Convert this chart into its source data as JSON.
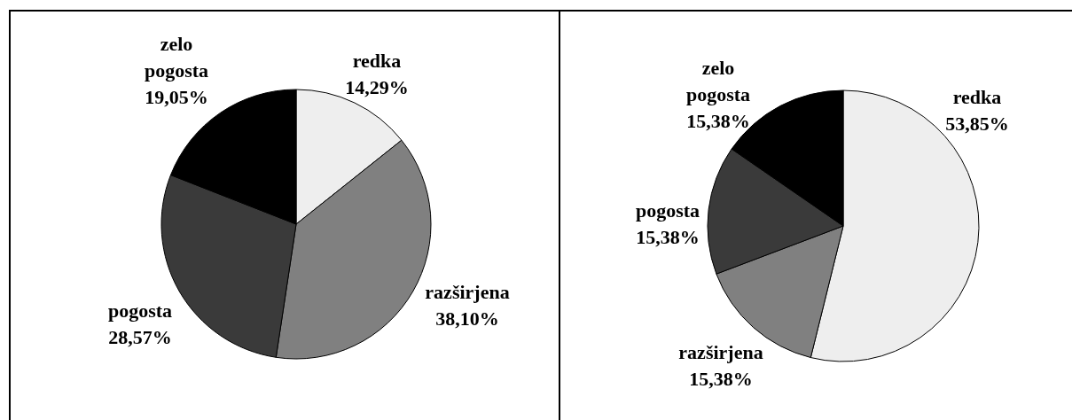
{
  "chart_data": [
    {
      "type": "pie",
      "categories": [
        "redka",
        "razširjena",
        "pogosta",
        "zelo pogosta"
      ],
      "values": [
        14.29,
        38.1,
        28.57,
        19.05
      ],
      "value_labels": [
        "14,29%",
        "38,10%",
        "28,57%",
        "19,05%"
      ],
      "colors": [
        "#eeeeee",
        "#808080",
        "#3a3a3a",
        "#000000"
      ]
    },
    {
      "type": "pie",
      "categories": [
        "redka",
        "razširjena",
        "pogosta",
        "zelo pogosta"
      ],
      "values": [
        53.85,
        15.38,
        15.38,
        15.38
      ],
      "value_labels": [
        "53,85%",
        "15,38%",
        "15,38%",
        "15,38%"
      ],
      "colors": [
        "#eeeeee",
        "#808080",
        "#3a3a3a",
        "#000000"
      ]
    }
  ]
}
